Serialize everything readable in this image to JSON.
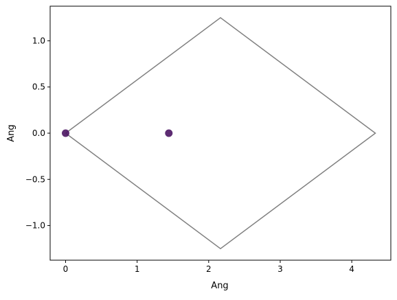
{
  "chart_data": {
    "type": "scatter",
    "title": "",
    "xlabel": "Ang",
    "ylabel": "Ang",
    "xlim": [
      -0.216,
      4.546
    ],
    "ylim": [
      -1.375,
      1.375
    ],
    "xticks": [
      0,
      1,
      2,
      3,
      4
    ],
    "xtick_labels": [
      "0",
      "1",
      "2",
      "3",
      "4"
    ],
    "yticks": [
      -1.0,
      -0.5,
      0.0,
      0.5,
      1.0
    ],
    "ytick_labels": [
      "−1.0",
      "−0.5",
      "0.0",
      "0.5",
      "1.0"
    ],
    "grid": false,
    "cell_outline": {
      "x": [
        0,
        2.165,
        4.33,
        2.165,
        0
      ],
      "y": [
        0,
        1.25,
        0,
        -1.25,
        0
      ],
      "color": "#808080"
    },
    "points": {
      "x": [
        0.0,
        1.443
      ],
      "y": [
        0.0,
        0.0
      ],
      "color": "#4b1563"
    }
  }
}
